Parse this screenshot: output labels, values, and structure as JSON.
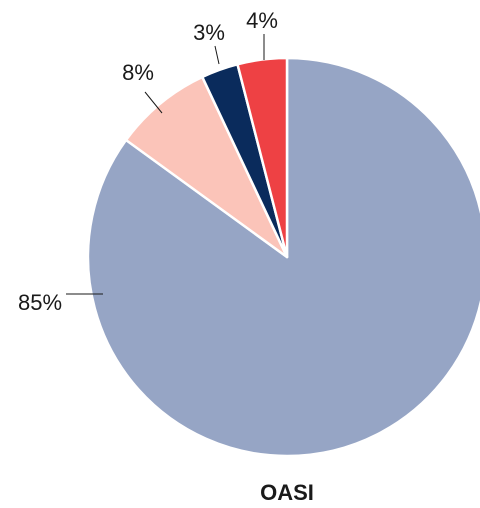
{
  "chart_data": {
    "type": "pie",
    "title": "OASI",
    "slices": [
      {
        "value": 85,
        "label": "85%",
        "color": "#96a5c5"
      },
      {
        "value": 8,
        "label": "8%",
        "color": "#fbc4b9"
      },
      {
        "value": 3,
        "label": "3%",
        "color": "#0a2b5c"
      },
      {
        "value": 4,
        "label": "4%",
        "color": "#ee4144"
      }
    ],
    "start_angle_deg": 0,
    "direction": "clockwise",
    "slice_border_color": "#ffffff"
  }
}
